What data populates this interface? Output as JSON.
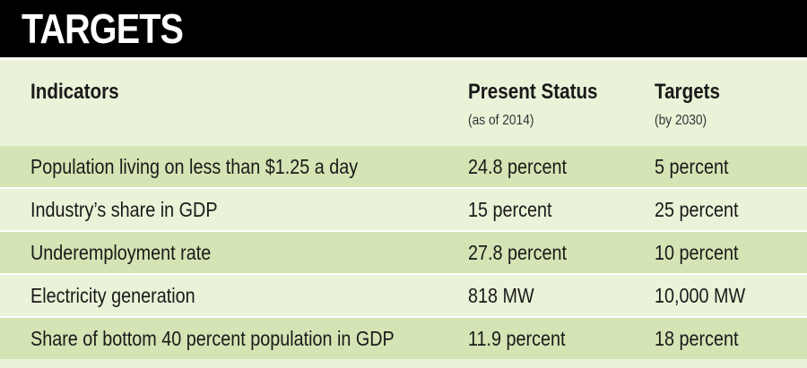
{
  "title": "TARGETS",
  "columns": [
    {
      "label": "Indicators",
      "sublabel": ""
    },
    {
      "label": "Present Status",
      "sublabel": "(as of 2014)"
    },
    {
      "label": "Targets",
      "sublabel": "(by 2030)"
    }
  ],
  "rows": [
    {
      "indicator": "Population living on less than $1.25 a day",
      "present": "24.8 percent",
      "target": "5 percent"
    },
    {
      "indicator": "Industry’s share in GDP",
      "present": "15 percent",
      "target": "25 percent"
    },
    {
      "indicator": "Underemployment rate",
      "present": "27.8 percent",
      "target": "10 percent"
    },
    {
      "indicator": "Electricity generation",
      "present": "818 MW",
      "target": "10,000 MW"
    },
    {
      "indicator": "Share of bottom 40 percent population in GDP",
      "present": "11.9 percent",
      "target": "18 percent"
    }
  ],
  "colors": {
    "title_bar": "#000000",
    "background": "#eaf2d8",
    "shaded_row": "#d4e4b4"
  }
}
